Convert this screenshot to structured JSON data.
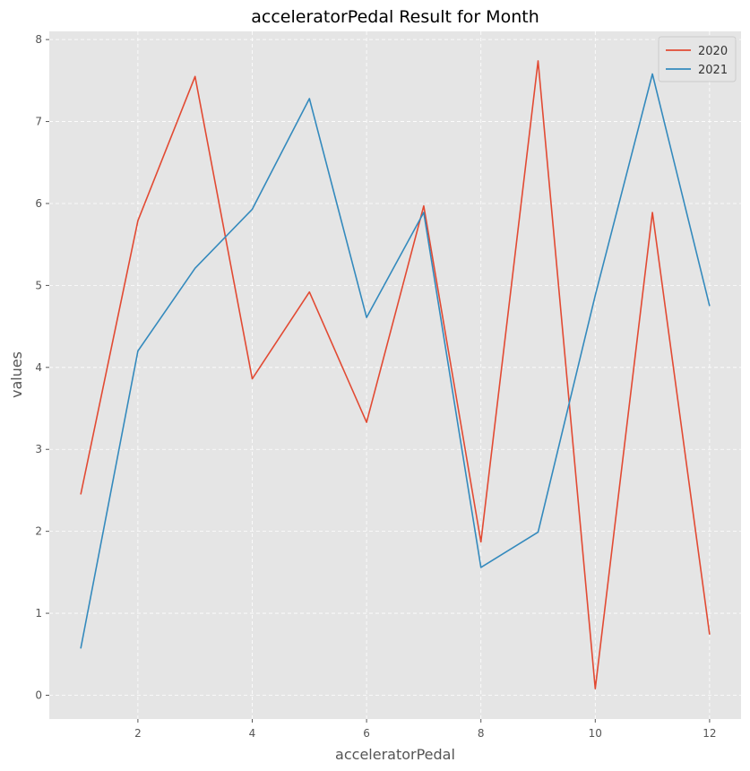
{
  "chart_data": {
    "type": "line",
    "title": "acceleratorPedal Result for Month",
    "xlabel": "acceleratorPedal",
    "ylabel": "values",
    "x": [
      1,
      2,
      3,
      4,
      5,
      6,
      7,
      8,
      9,
      10,
      11,
      12
    ],
    "xlim": [
      0.45,
      12.55
    ],
    "ylim": [
      -0.29,
      8.1
    ],
    "xticks": [
      2,
      4,
      6,
      8,
      10,
      12
    ],
    "yticks": [
      0,
      1,
      2,
      3,
      4,
      5,
      6,
      7,
      8
    ],
    "grid": true,
    "legend_position": "top-right",
    "series": [
      {
        "name": "2020",
        "color": "#E24A33",
        "values": [
          2.45,
          5.79,
          7.55,
          3.86,
          4.92,
          3.33,
          5.97,
          1.87,
          7.74,
          0.08,
          5.89,
          0.74
        ]
      },
      {
        "name": "2021",
        "color": "#348ABD",
        "values": [
          0.57,
          4.2,
          5.21,
          5.93,
          7.28,
          4.61,
          5.89,
          1.56,
          1.99,
          4.88,
          7.58,
          4.75
        ]
      }
    ]
  }
}
